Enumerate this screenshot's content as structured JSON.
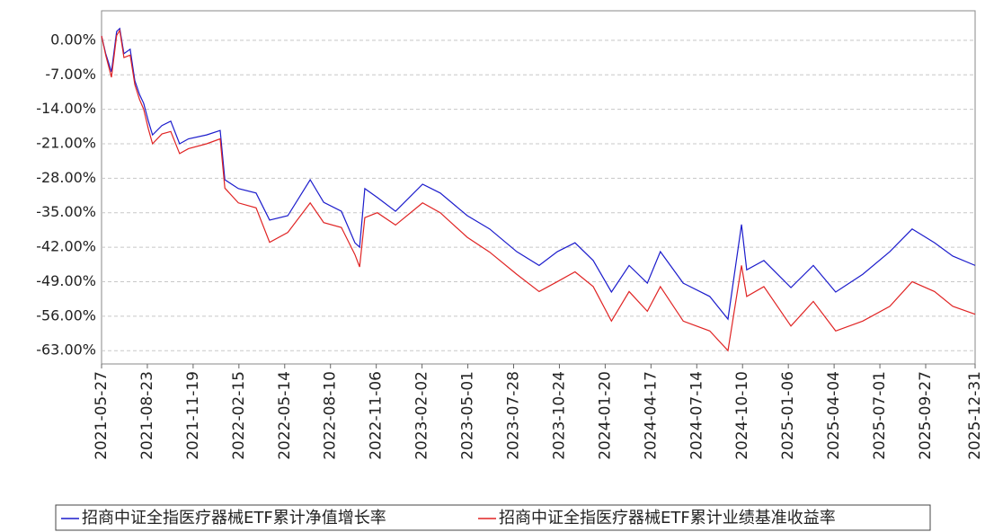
{
  "chart_data": {
    "type": "line",
    "x": [
      "2021-05-27",
      "2021-06-04",
      "2021-06-15",
      "2021-06-25",
      "2021-07-01",
      "2021-07-09",
      "2021-07-21",
      "2021-07-30",
      "2021-08-08",
      "2021-08-16",
      "2021-08-25",
      "2021-09-02",
      "2021-09-20",
      "2021-10-07",
      "2021-10-24",
      "2021-11-10",
      "2021-12-15",
      "2022-01-10",
      "2022-01-19",
      "2022-02-14",
      "2022-03-20",
      "2022-04-15",
      "2022-05-20",
      "2022-07-02",
      "2022-07-28",
      "2022-08-31",
      "2022-09-26",
      "2022-10-05",
      "2022-10-15",
      "2022-11-08",
      "2022-12-13",
      "2023-02-03",
      "2023-03-09",
      "2023-04-30",
      "2023-06-12",
      "2023-08-03",
      "2023-09-15",
      "2023-10-20",
      "2023-11-23",
      "2023-12-28",
      "2024-02-01",
      "2024-03-06",
      "2024-04-10",
      "2024-05-05",
      "2024-06-18",
      "2024-08-08",
      "2024-09-12",
      "2024-10-08",
      "2024-10-18",
      "2024-11-20",
      "2025-01-11",
      "2025-02-23",
      "2025-04-07",
      "2025-05-29",
      "2025-07-20",
      "2025-09-01",
      "2025-10-14",
      "2025-11-18",
      "2025-12-31"
    ],
    "series": [
      {
        "name": "招商中证全指医疗器械ETF累计净值增长率",
        "color": "#1c1ccc",
        "values": [
          0.9,
          -2.7,
          -6.4,
          1.8,
          2.4,
          -2.7,
          -1.8,
          -8.2,
          -11,
          -12.8,
          -16.4,
          -19.2,
          -17.3,
          -16.4,
          -21,
          -20,
          -19.2,
          -18.3,
          -28.3,
          -30.1,
          -31,
          -36.5,
          -35.6,
          -28.3,
          -32.9,
          -34.7,
          -41.1,
          -42,
          -30.1,
          -31.9,
          -34.7,
          -29.2,
          -31,
          -35.6,
          -38.3,
          -42.9,
          -45.7,
          -42.9,
          -41.1,
          -44.7,
          -51.1,
          -45.7,
          -49.3,
          -42.9,
          -49.3,
          -52,
          -56.6,
          -37.4,
          -46.6,
          -44.7,
          -50.2,
          -45.7,
          -51.1,
          -47.5,
          -42.9,
          -38.3,
          -41.1,
          -43.8,
          -45.7
        ]
      },
      {
        "name": "招商中证全指医疗器械ETF累计业绩基准收益率",
        "color": "#e02424",
        "values": [
          0.9,
          -3,
          -7.5,
          1,
          2,
          -3.5,
          -3,
          -9,
          -12,
          -14,
          -18,
          -21,
          -19,
          -18.5,
          -23,
          -22,
          -21,
          -20,
          -30,
          -33,
          -34,
          -41,
          -39,
          -33,
          -37,
          -38,
          -43.5,
          -46,
          -36,
          -35,
          -37.5,
          -33,
          -35,
          -40,
          -43,
          -47.5,
          -51,
          -49,
          -47,
          -50,
          -57,
          -51,
          -55,
          -50,
          -57,
          -59,
          -63,
          -45.7,
          -52,
          -50,
          -58,
          -53,
          -59,
          -57,
          -54,
          -49,
          -51,
          -54,
          -55.6
        ]
      }
    ],
    "xlim": [
      "2021-05-27",
      "2025-12-31"
    ],
    "xticks": [
      "2021-05-27",
      "2021-08-23",
      "2021-11-19",
      "2022-02-15",
      "2022-05-14",
      "2022-08-10",
      "2022-11-06",
      "2023-02-02",
      "2023-05-01",
      "2023-07-28",
      "2023-10-24",
      "2024-01-20",
      "2024-04-17",
      "2024-07-14",
      "2024-10-10",
      "2025-01-06",
      "2025-04-04",
      "2025-07-01",
      "2025-09-27",
      "2025-12-31"
    ],
    "ylim": [
      -65.7,
      6
    ],
    "yticks": [
      {
        "value": 0,
        "label": "0.00%"
      },
      {
        "value": -7,
        "label": "-7.00%"
      },
      {
        "value": -14,
        "label": "-14.00%"
      },
      {
        "value": -21,
        "label": "-21.00%"
      },
      {
        "value": -28,
        "label": "-28.00%"
      },
      {
        "value": -35,
        "label": "-35.00%"
      },
      {
        "value": -42,
        "label": "-42.00%"
      },
      {
        "value": -49,
        "label": "-49.00%"
      },
      {
        "value": -56,
        "label": "-56.00%"
      },
      {
        "value": -63,
        "label": "-63.00%"
      }
    ],
    "grid": true
  }
}
